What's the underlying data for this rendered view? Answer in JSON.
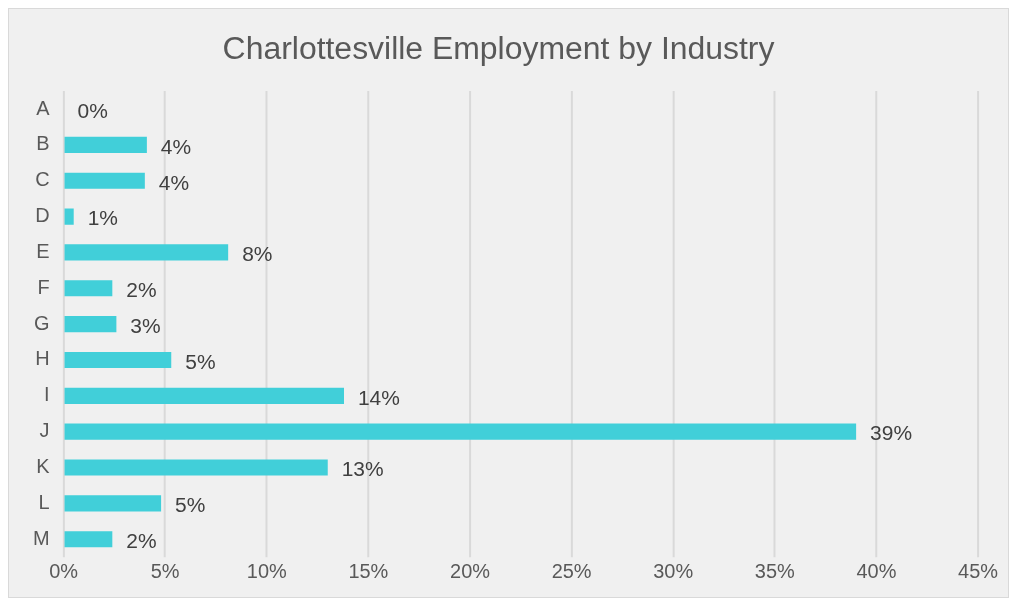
{
  "chart_data": {
    "type": "bar",
    "orientation": "horizontal",
    "title": "Charlottesville Employment by Industry",
    "categories": [
      "A",
      "B",
      "C",
      "D",
      "E",
      "F",
      "G",
      "H",
      "I",
      "J",
      "K",
      "L",
      "M"
    ],
    "values": [
      0,
      4.1,
      4.0,
      0.5,
      8.1,
      2.4,
      2.6,
      5.3,
      13.8,
      39,
      13.0,
      4.8,
      2.4
    ],
    "value_labels": [
      "0%",
      "4%",
      "4%",
      "1%",
      "8%",
      "2%",
      "3%",
      "5%",
      "14%",
      "39%",
      "13%",
      "5%",
      "2%"
    ],
    "color": "#41cfd9",
    "xlim": [
      0,
      45
    ],
    "xticks": [
      {
        "value": 0,
        "label": "0%"
      },
      {
        "value": 5,
        "label": "5%"
      },
      {
        "value": 10,
        "label": "10%"
      },
      {
        "value": 15,
        "label": "15%"
      },
      {
        "value": 20,
        "label": "20%"
      },
      {
        "value": 25,
        "label": "25%"
      },
      {
        "value": 30,
        "label": "30%"
      },
      {
        "value": 35,
        "label": "35%"
      },
      {
        "value": 40,
        "label": "40%"
      },
      {
        "value": 45,
        "label": "45%"
      }
    ],
    "grid": "x",
    "legend": false
  }
}
